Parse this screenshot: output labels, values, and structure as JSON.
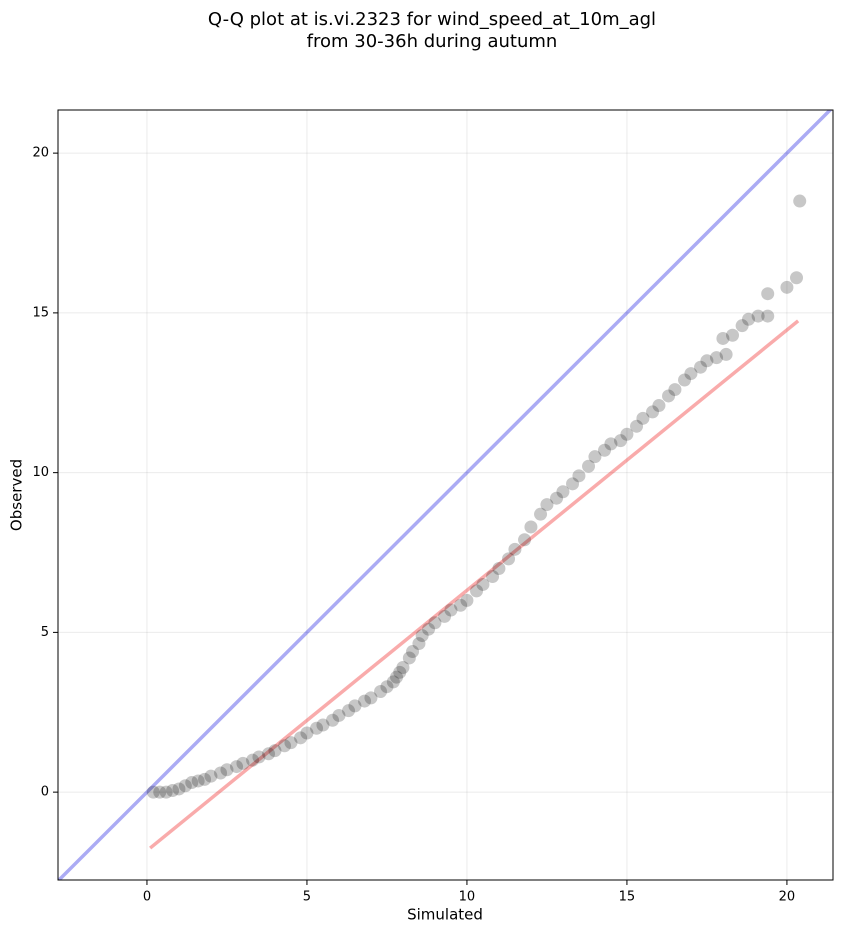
{
  "chart_data": {
    "type": "scatter",
    "title": [
      "Q-Q plot at is.vi.2323 for wind_speed_at_10m_agl",
      "from 30-36h during autumn"
    ],
    "xlabel": "Simulated",
    "ylabel": "Observed",
    "xlim": [
      -2.78,
      21.44
    ],
    "ylim": [
      -2.75,
      21.35
    ],
    "xticks": [
      0,
      5,
      10,
      15,
      20
    ],
    "yticks": [
      0,
      5,
      10,
      15,
      20
    ],
    "grid": true,
    "color": "#000000",
    "alpha": 0.22,
    "x": [
      0.2,
      0.4,
      0.6,
      0.8,
      1.0,
      1.2,
      1.4,
      1.6,
      1.8,
      2.0,
      2.3,
      2.5,
      2.8,
      3.0,
      3.3,
      3.5,
      3.8,
      4.0,
      4.3,
      4.5,
      4.8,
      5.0,
      5.3,
      5.5,
      5.8,
      6.0,
      6.3,
      6.5,
      6.8,
      7.0,
      7.3,
      7.5,
      7.7,
      7.8,
      7.9,
      8.0,
      8.2,
      8.3,
      8.5,
      8.6,
      8.8,
      9.0,
      9.3,
      9.5,
      9.8,
      10.0,
      10.3,
      10.5,
      10.8,
      11.0,
      11.3,
      11.5,
      11.8,
      12.0,
      12.3,
      12.5,
      12.8,
      13.0,
      13.3,
      13.5,
      13.8,
      14.0,
      14.3,
      14.5,
      14.8,
      15.0,
      15.3,
      15.5,
      15.8,
      16.0,
      16.3,
      16.5,
      16.8,
      17.0,
      17.3,
      17.5,
      17.8,
      18.0,
      18.1,
      18.3,
      18.6,
      18.8,
      19.1,
      19.4,
      19.4,
      20.0,
      20.3,
      20.4
    ],
    "values": [
      0.0,
      0.0,
      0.0,
      0.05,
      0.1,
      0.2,
      0.3,
      0.35,
      0.4,
      0.5,
      0.6,
      0.7,
      0.8,
      0.9,
      1.0,
      1.1,
      1.2,
      1.3,
      1.45,
      1.55,
      1.7,
      1.85,
      2.0,
      2.1,
      2.25,
      2.4,
      2.55,
      2.7,
      2.85,
      2.95,
      3.15,
      3.3,
      3.45,
      3.6,
      3.75,
      3.9,
      4.2,
      4.4,
      4.65,
      4.9,
      5.1,
      5.3,
      5.5,
      5.7,
      5.85,
      6.0,
      6.3,
      6.5,
      6.75,
      7.0,
      7.3,
      7.6,
      7.9,
      8.3,
      8.7,
      9.0,
      9.2,
      9.4,
      9.65,
      9.9,
      10.2,
      10.5,
      10.7,
      10.9,
      11.0,
      11.2,
      11.45,
      11.7,
      11.9,
      12.1,
      12.4,
      12.6,
      12.9,
      13.1,
      13.3,
      13.5,
      13.6,
      14.2,
      13.7,
      14.3,
      14.6,
      14.8,
      14.9,
      15.6,
      14.9,
      15.8,
      16.1,
      18.5
    ],
    "identity_line": {
      "x": [
        -2.78,
        21.44
      ],
      "y": [
        -2.78,
        21.44
      ],
      "color": "#0000dd",
      "alpha": 0.33
    },
    "fit_line": {
      "x": [
        0.1,
        20.35
      ],
      "y": [
        -1.75,
        14.75
      ],
      "color": "#ee0000",
      "alpha": 0.33
    }
  }
}
